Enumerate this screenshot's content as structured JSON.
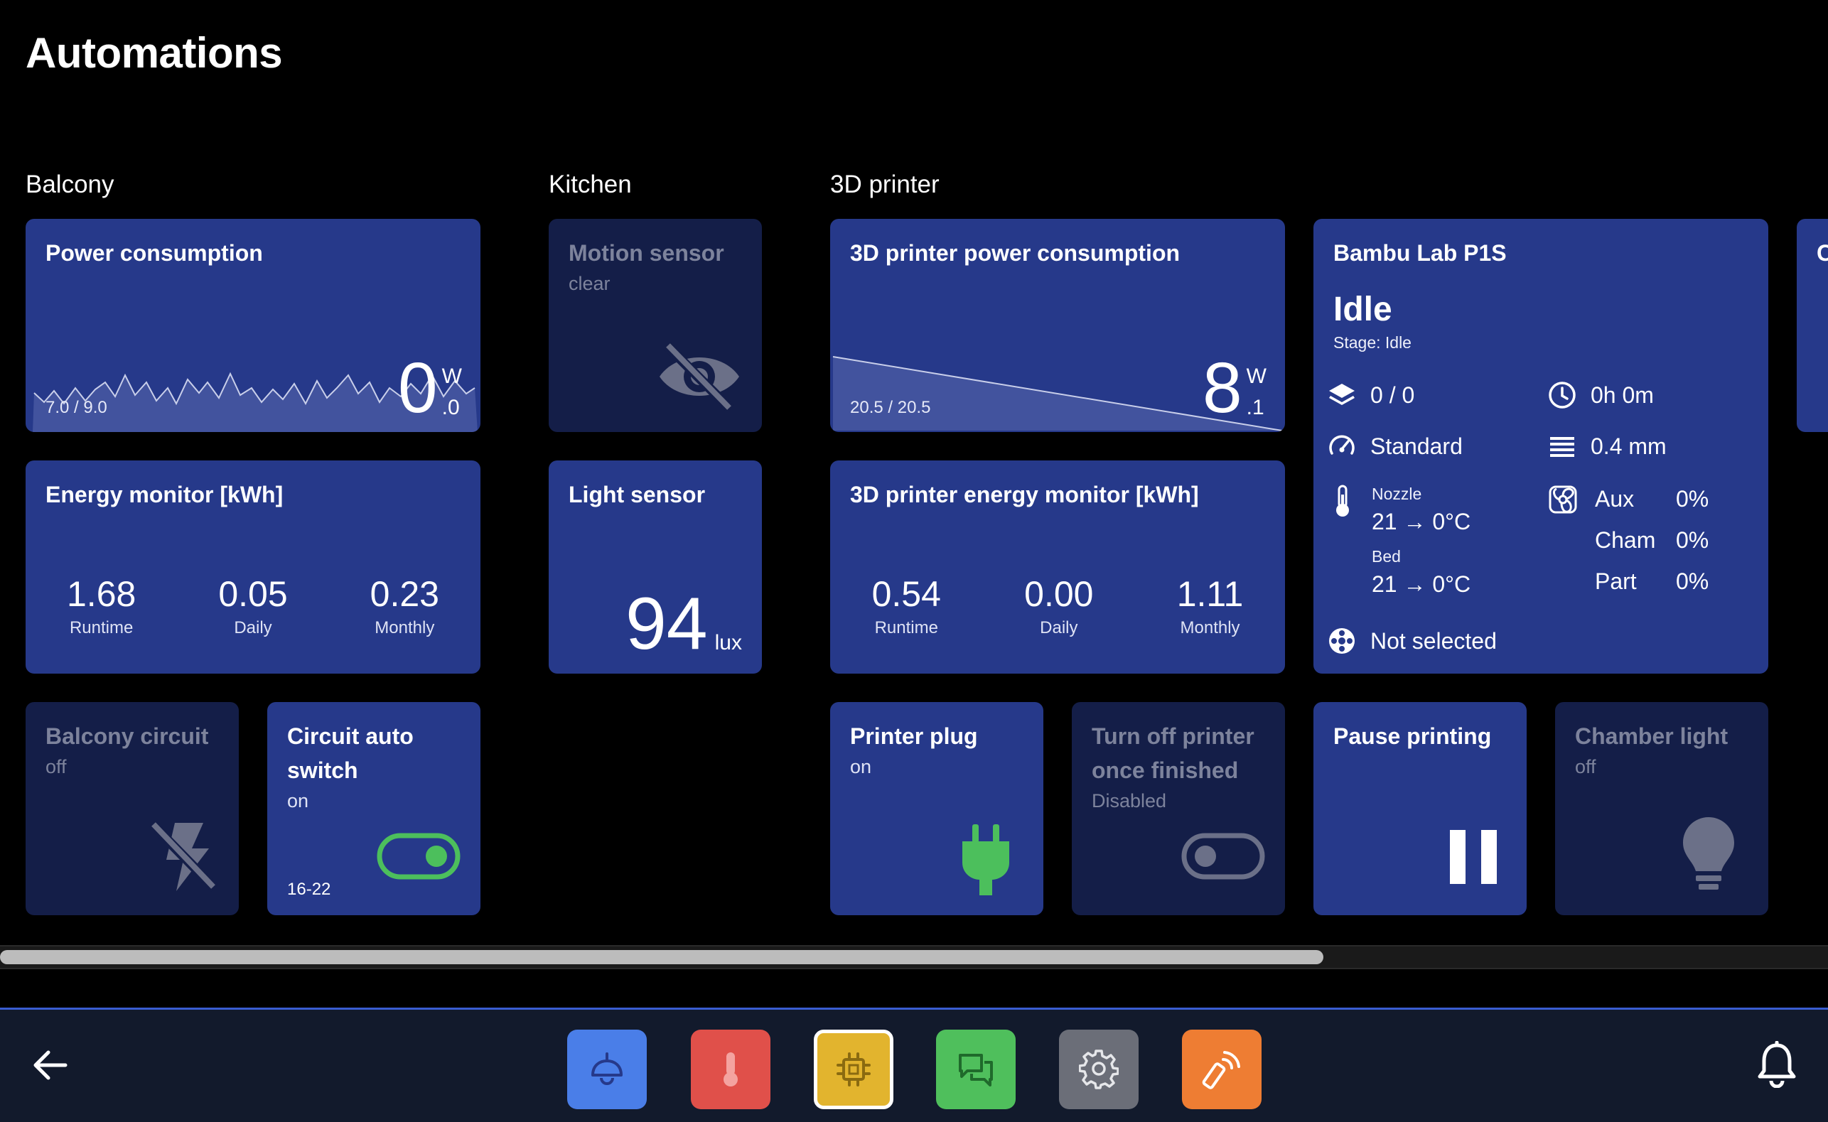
{
  "page": {
    "title": "Automations"
  },
  "sections": {
    "balcony": "Balcony",
    "kitchen": "Kitchen",
    "printer": "3D printer"
  },
  "power": {
    "title": "Power consumption",
    "range": "7.0 / 9.0",
    "value_int": "0",
    "value_dec": ".0",
    "unit": "W"
  },
  "energy": {
    "title": "Energy monitor [kWh]",
    "runtime": "1.68",
    "daily": "0.05",
    "monthly": "0.23",
    "runtime_label": "Runtime",
    "daily_label": "Daily",
    "monthly_label": "Monthly"
  },
  "balcony_circuit": {
    "title": "Balcony circuit",
    "state": "off"
  },
  "circuit_auto": {
    "title_line1": "Circuit auto",
    "title_line2": "switch",
    "state": "on",
    "schedule": "16-22"
  },
  "motion": {
    "title": "Motion sensor",
    "state": "clear"
  },
  "light_sensor": {
    "title": "Light sensor",
    "value": "94",
    "unit": "lux"
  },
  "printer_power": {
    "title": "3D printer power consumption",
    "range": "20.5 / 20.5",
    "value_int": "8",
    "value_dec": ".1",
    "unit": "W"
  },
  "printer_energy": {
    "title": "3D printer energy monitor [kWh]",
    "runtime": "0.54",
    "daily": "0.00",
    "monthly": "1.11",
    "runtime_label": "Runtime",
    "daily_label": "Daily",
    "monthly_label": "Monthly"
  },
  "bambu": {
    "title": "Bambu Lab P1S",
    "status": "Idle",
    "stage": "Stage: Idle",
    "layers": "0 / 0",
    "time": "0h 0m",
    "speed": "Standard",
    "layer_height": "0.4 mm",
    "nozzle_label": "Nozzle",
    "nozzle_temp": "21 → 0°C",
    "bed_label": "Bed",
    "bed_temp": "21 → 0°C",
    "aux_label": "Aux",
    "aux_val": "0%",
    "cham_label": "Cham",
    "cham_val": "0%",
    "part_label": "Part",
    "part_val": "0%",
    "filament": "Not selected"
  },
  "edge_card": {
    "title_fragment": "C"
  },
  "printer_plug": {
    "title": "Printer plug",
    "state": "on"
  },
  "turn_off": {
    "title_line1": "Turn off printer",
    "title_line2": "once finished",
    "state": "Disabled"
  },
  "pause": {
    "title": "Pause printing"
  },
  "chamber": {
    "title": "Chamber light",
    "state": "off"
  },
  "nav": {
    "back_icon": "arrow-left-icon",
    "bell_icon": "bell-icon",
    "buttons": [
      {
        "icon": "ceiling-lamp-icon",
        "color": "#4a7ee8"
      },
      {
        "icon": "thermometer-icon",
        "color": "#e0504a"
      },
      {
        "icon": "chip-icon",
        "color": "#e2b42e",
        "selected": true
      },
      {
        "icon": "chat-icon",
        "color": "#4fbf5c"
      },
      {
        "icon": "gear-icon",
        "color": "#6b6e78"
      },
      {
        "icon": "remote-icon",
        "color": "#ee7d33"
      }
    ]
  },
  "colors": {
    "card": "#26398a",
    "card_dim": "#141e48",
    "accent_green": "#4cbf5c"
  }
}
